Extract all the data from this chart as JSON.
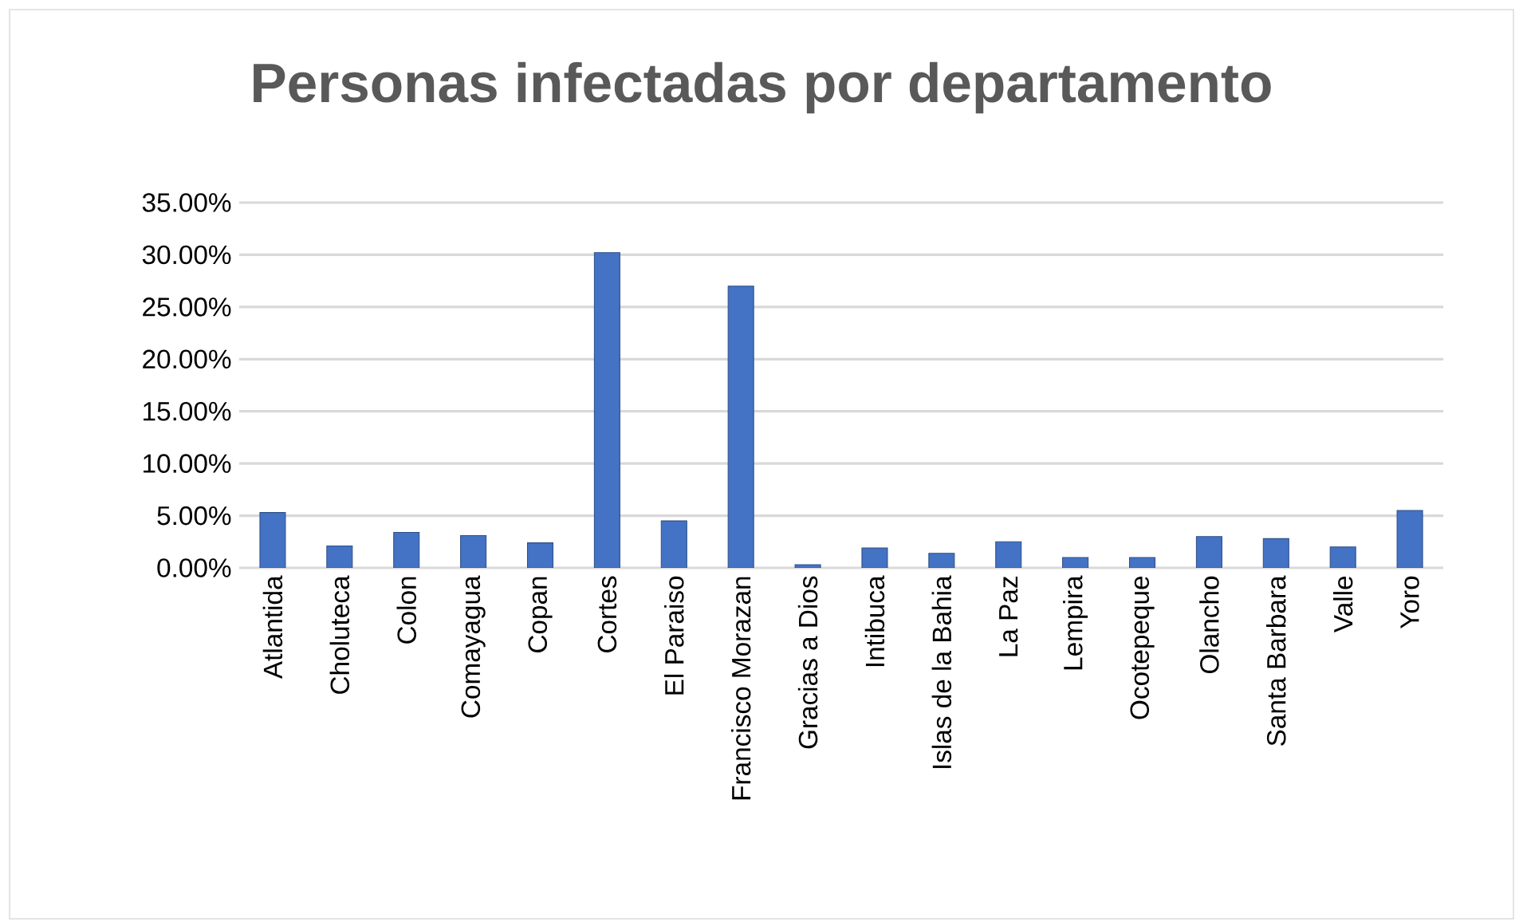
{
  "chart_data": {
    "type": "bar",
    "title": "Personas infectadas por departamento",
    "categories": [
      "Atlantida",
      "Choluteca",
      "Colon",
      "Comayagua",
      "Copan",
      "Cortes",
      "El Paraiso",
      "Francisco Morazan",
      "Gracias a Dios",
      "Intibuca",
      "Islas de la Bahia",
      "La Paz",
      "Lempira",
      "Ocotepeque",
      "Olancho",
      "Santa Barbara",
      "Valle",
      "Yoro"
    ],
    "values": [
      5.3,
      2.1,
      3.4,
      3.1,
      2.4,
      30.2,
      4.5,
      27.0,
      0.3,
      1.9,
      1.4,
      2.5,
      1.0,
      1.0,
      3.0,
      2.8,
      2.0,
      5.5
    ],
    "color": "#4472c4",
    "ylim": [
      0,
      35
    ],
    "yticks": [
      {
        "value": 0,
        "label": "0.00%"
      },
      {
        "value": 5,
        "label": "5.00%"
      },
      {
        "value": 10,
        "label": "10.00%"
      },
      {
        "value": 15,
        "label": "15.00%"
      },
      {
        "value": 20,
        "label": "20.00%"
      },
      {
        "value": 25,
        "label": "25.00%"
      },
      {
        "value": 30,
        "label": "30.00%"
      },
      {
        "value": 35,
        "label": "35.00%"
      }
    ],
    "grid": "y"
  }
}
